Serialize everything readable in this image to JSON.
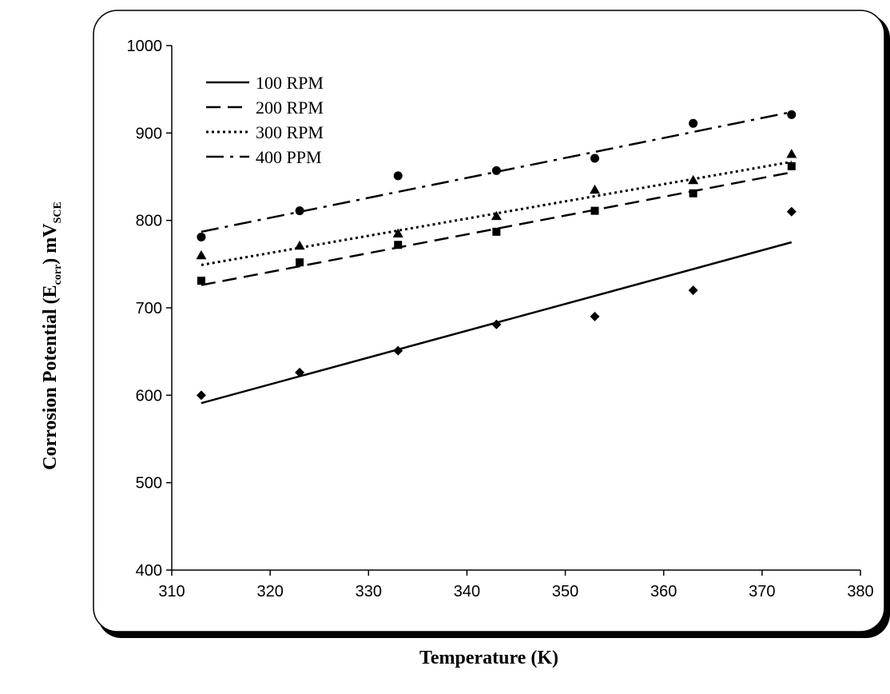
{
  "chart_data": {
    "type": "scatter",
    "xlabel": "Temperature  (K)",
    "ylabel": {
      "part1": "Corrosion Potential (E",
      "sub1": "corr",
      "part2": ") mV",
      "sub2": "SCE"
    },
    "xlim": [
      310,
      380
    ],
    "ylim": [
      400,
      1000
    ],
    "xticks": [
      "310",
      "320",
      "330",
      "340",
      "350",
      "360",
      "370",
      "380"
    ],
    "yticks": [
      "400",
      "500",
      "600",
      "700",
      "800",
      "900",
      "1000"
    ],
    "x": [
      313,
      323,
      333,
      343,
      353,
      363,
      373
    ],
    "series": [
      {
        "name": "100 RPM",
        "marker": "diamond",
        "line": "solid",
        "values": [
          600,
          626,
          651,
          681,
          690,
          720,
          810
        ],
        "trend": [
          591,
          775
        ]
      },
      {
        "name": "200 RPM",
        "marker": "square",
        "line": "dash",
        "values": [
          731,
          752,
          772,
          787,
          811,
          831,
          862
        ],
        "trend": [
          726,
          855
        ]
      },
      {
        "name": "300 RPM",
        "marker": "triangle",
        "line": "dot",
        "values": [
          760,
          771,
          785,
          805,
          835,
          846,
          876
        ],
        "trend": [
          749,
          867
        ]
      },
      {
        "name": "400 PPM",
        "marker": "circle",
        "line": "dashdot",
        "values": [
          781,
          811,
          851,
          857,
          871,
          911,
          921
        ],
        "trend": [
          787,
          924
        ]
      }
    ],
    "grid": false,
    "legend_position": "top-left"
  }
}
